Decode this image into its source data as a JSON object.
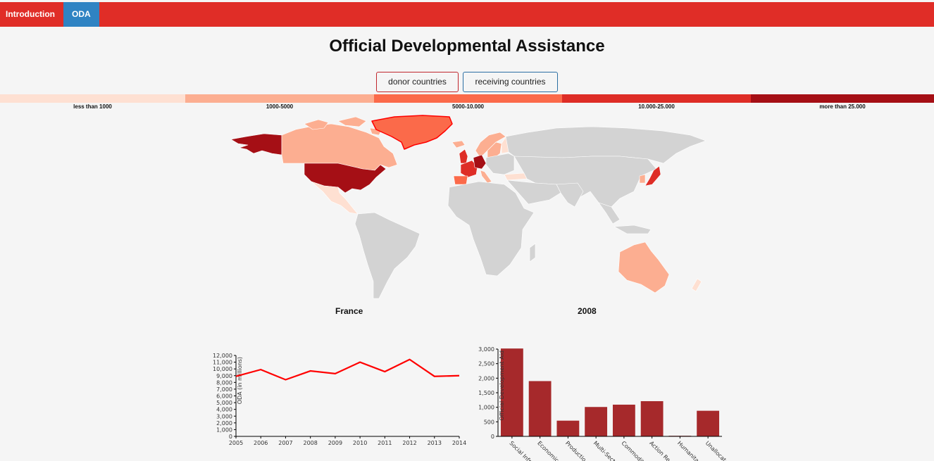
{
  "nav": {
    "tabs": [
      {
        "label": "Introduction",
        "active": false
      },
      {
        "label": "ODA",
        "active": true
      }
    ]
  },
  "page": {
    "title": "Official Developmental Assistance"
  },
  "toggle": {
    "donor_label": "donor countries",
    "receiving_label": "receiving countries"
  },
  "legend": {
    "items": [
      {
        "label": "less than 1000",
        "color": "#fee0d2"
      },
      {
        "label": "1000-5000",
        "color": "#fcae91"
      },
      {
        "label": "5000-10.000",
        "color": "#fb6a4a"
      },
      {
        "label": "10.000-25.000",
        "color": "#de2d26"
      },
      {
        "label": "more than 25.000",
        "color": "#a50f15"
      }
    ]
  },
  "map": {
    "default_color": "#d3d3d3",
    "highlight": "Greenland"
  },
  "selection": {
    "country": "France",
    "year": "2008"
  },
  "chart_data": [
    {
      "type": "line",
      "x": [
        2005,
        2006,
        2007,
        2008,
        2009,
        2010,
        2011,
        2012,
        2013,
        2014
      ],
      "series": [
        {
          "values": [
            8900,
            9900,
            8400,
            9700,
            9300,
            11000,
            9600,
            11400,
            8900,
            9000
          ],
          "color": "#ff0000"
        }
      ],
      "ylabel": "ODA (in millions)",
      "ylim": [
        0,
        12000
      ],
      "yticks": [
        "0",
        "1,000",
        "2,000",
        "3,000",
        "4,000",
        "5,000",
        "6,000",
        "7,000",
        "8,000",
        "9,000",
        "10,000",
        "11,000",
        "12,000"
      ],
      "xticks": [
        "2005",
        "2006",
        "2007",
        "2008",
        "2009",
        "2010",
        "2011",
        "2012",
        "2013",
        "2014"
      ]
    },
    {
      "type": "bar",
      "categories": [
        "Social Infr.",
        "Economic ...",
        "Productio...",
        "Multi-Secto...",
        "Commodit...",
        "Action Re...",
        "Humanita...",
        "Unallocat..."
      ],
      "values": [
        3020,
        1900,
        540,
        1010,
        1090,
        1210,
        20,
        880
      ],
      "color": "#a6292b",
      "ylabel": "Official Development Aid",
      "ylim": [
        0,
        3000
      ],
      "yticks": [
        "0",
        "500",
        "1,000",
        "1,500",
        "2,000",
        "2,500",
        "3,000"
      ]
    }
  ]
}
